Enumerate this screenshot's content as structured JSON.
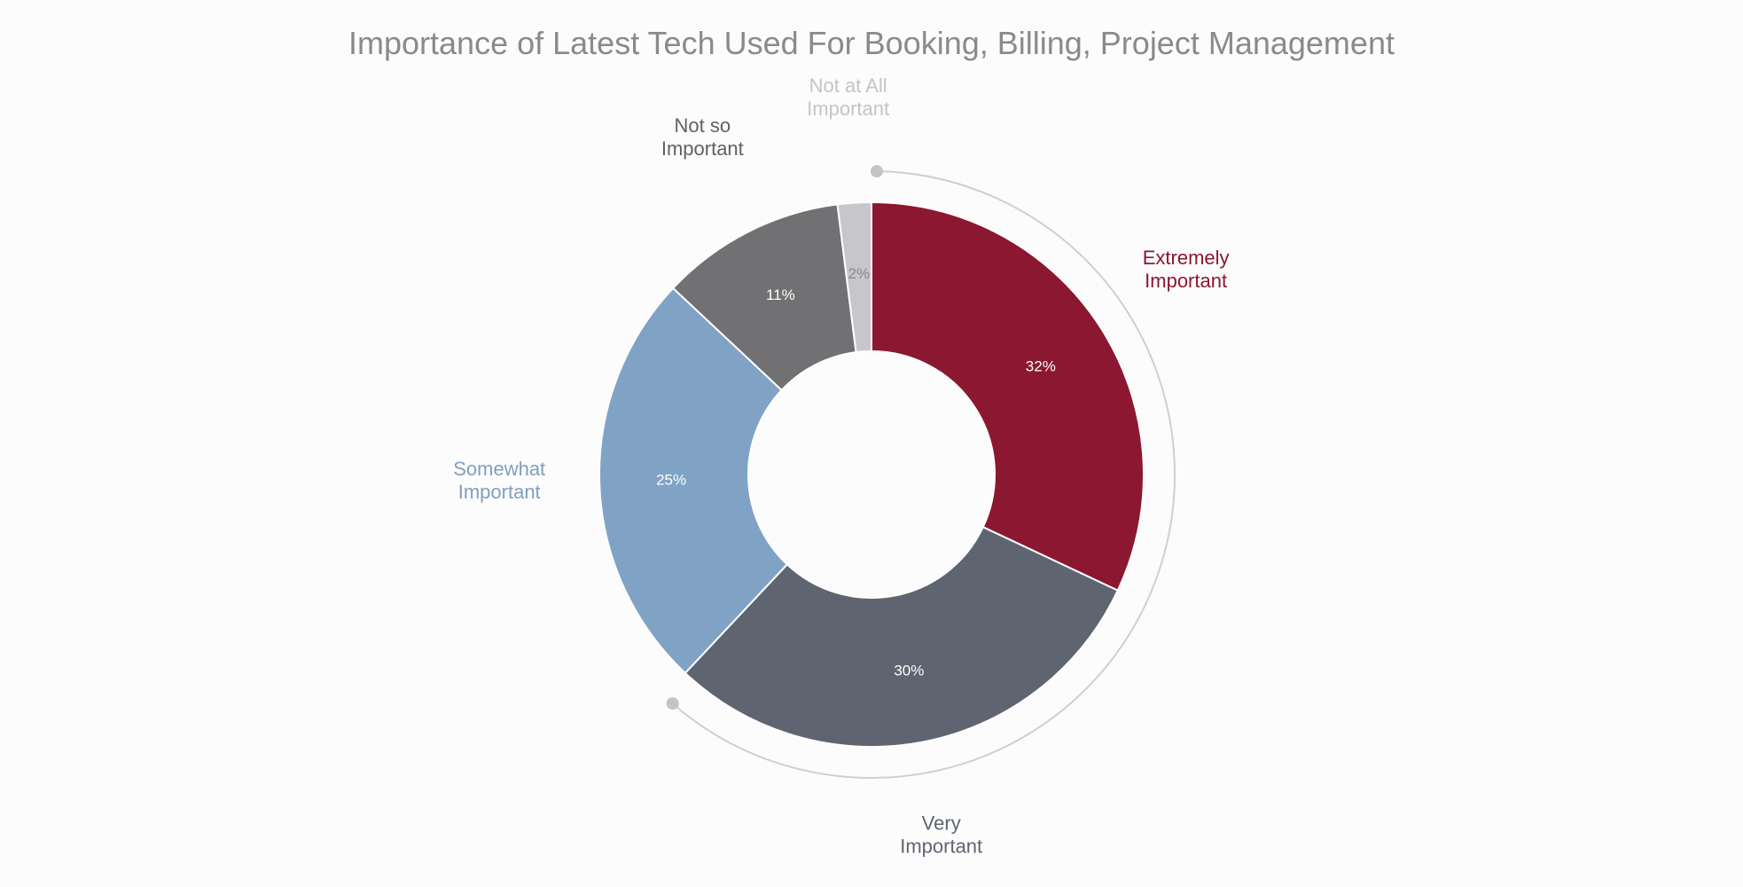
{
  "chart_data": {
    "type": "pie",
    "donut": true,
    "title": "Importance of Latest Tech Used For Booking, Billing, Project Management",
    "slices": [
      {
        "label": "Extremely Important",
        "value": 32,
        "value_label": "32%",
        "color": "#8c1730",
        "label_color": "#8c1730",
        "value_label_color": "#ffffff"
      },
      {
        "label": "Very Important",
        "value": 30,
        "value_label": "30%",
        "color": "#5e6570",
        "label_color": "#5e6570",
        "value_label_color": "#ffffff"
      },
      {
        "label": "Somewhat Important",
        "value": 25,
        "value_label": "25%",
        "color": "#80a3c5",
        "label_color": "#7f9fc0",
        "value_label_color": "#ffffff"
      },
      {
        "label": "Not so Important",
        "value": 11,
        "value_label": "11%",
        "color": "#717173",
        "label_color": "#5f6066",
        "value_label_color": "#ffffff"
      },
      {
        "label": "Not at All Important",
        "value": 2,
        "value_label": "2%",
        "color": "#c7c6ca",
        "label_color": "#c4c4c8",
        "value_label_color": "#8a8a8e"
      }
    ],
    "legend": "none"
  }
}
